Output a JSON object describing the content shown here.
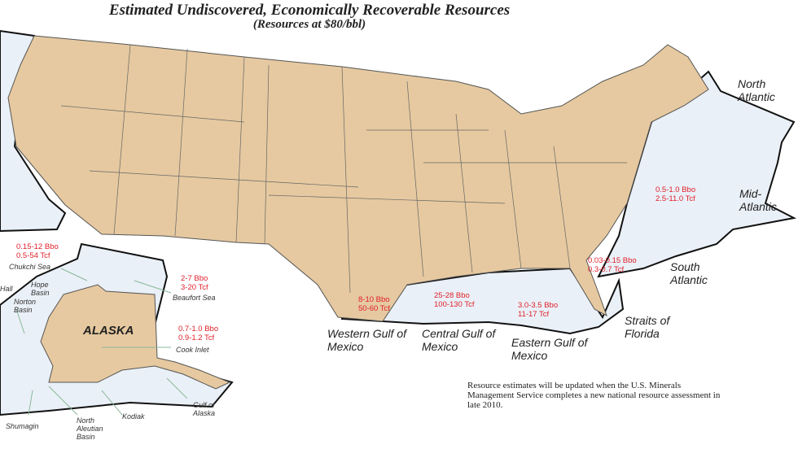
{
  "title": "Estimated Undiscovered, Economically Recoverable Resources",
  "subtitle": "(Resources at $80/bbl)",
  "colors": {
    "land": "#e6c9a0",
    "offshore": "#eaf0f7",
    "estimate_text": "#e0202a",
    "boundary": "#111111"
  },
  "regions": [
    {
      "name": "North Atlantic"
    },
    {
      "name": "Mid-Atlantic",
      "oil": "0.5-1.0 Bbo",
      "gas": "2.5-11.0 Tcf"
    },
    {
      "name": "South Atlantic",
      "oil": "0.03-0.15 Bbo",
      "gas": "0.3-0.7 Tcf"
    },
    {
      "name": "Straits of Florida"
    },
    {
      "name": "Western Gulf of Mexico",
      "oil": "8-10 Bbo",
      "gas": "50-60 Tcf"
    },
    {
      "name": "Central Gulf of Mexico",
      "oil": "25-28 Bbo",
      "gas": "100-130 Tcf"
    },
    {
      "name": "Eastern Gulf of Mexico",
      "oil": "3.0-3.5 Bbo",
      "gas": "11-17 Tcf"
    },
    {
      "name": "Chukchi Sea",
      "oil": "0.15-12 Bbo",
      "gas": "0.5-54 Tcf"
    },
    {
      "name": "Beaufort Sea",
      "oil": "2-7 Bbo",
      "gas": "3-20 Tcf"
    },
    {
      "name": "Cook Inlet",
      "oil": "0.7-1.0 Bbo",
      "gas": "0.9-1.2 Tcf"
    }
  ],
  "alaska": {
    "label": "ALASKA",
    "areas": [
      "Hall",
      "Hope Basin",
      "Norton Basin",
      "Shumagin",
      "North Aleutian Basin",
      "Kodiak",
      "Gulf of Alaska"
    ]
  },
  "note": "Resource estimates will be updated when the U.S. Minerals Management Service completes a new national resource assessment in late 2010."
}
